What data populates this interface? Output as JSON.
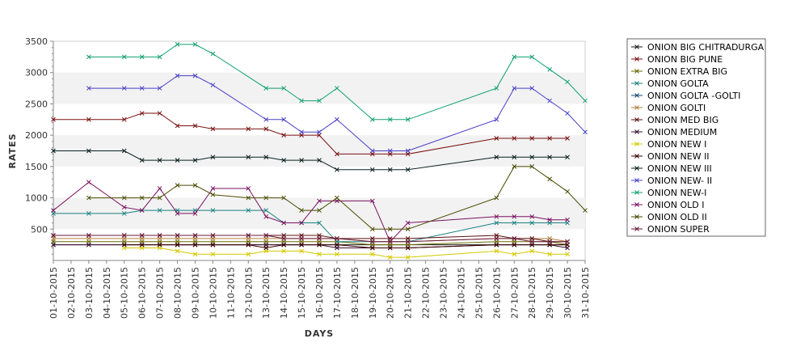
{
  "chart_data": {
    "type": "line",
    "title": "",
    "xlabel": "DAYS",
    "ylabel": "RATES",
    "ylim": [
      0,
      3500
    ],
    "yticks": [
      500,
      1000,
      1500,
      2000,
      2500,
      3000,
      3500
    ],
    "grid": "alternating horizontal bands",
    "legend_position": "right",
    "categories": [
      "01-10-2015",
      "02-10-2015",
      "03-10-2015",
      "04-10-2015",
      "05-10-2015",
      "06-10-2015",
      "07-10-2015",
      "08-10-2015",
      "09-10-2015",
      "10-10-2015",
      "11-10-2015",
      "12-10-2015",
      "13-10-2015",
      "14-10-2015",
      "15-10-2015",
      "16-10-2015",
      "17-10-2015",
      "18-10-2015",
      "19-10-2015",
      "20-10-2015",
      "21-10-2015",
      "22-10-2015",
      "23-10-2015",
      "24-10-2015",
      "25-10-2015",
      "26-10-2015",
      "27-10-2015",
      "28-10-2015",
      "29-10-2015",
      "30-10-2015",
      "31-10-2015"
    ],
    "series": [
      {
        "name": "ONION BIG CHITRADURGA",
        "color": "#1a1a1a",
        "values": [
          250,
          null,
          250,
          null,
          250,
          250,
          250,
          250,
          250,
          250,
          null,
          250,
          250,
          250,
          250,
          250,
          250,
          null,
          250,
          250,
          250,
          null,
          null,
          null,
          null,
          250,
          250,
          250,
          250,
          250,
          null
        ]
      },
      {
        "name": "ONION BIG PUNE",
        "color": "#7a1010",
        "values": [
          2250,
          null,
          2250,
          null,
          2250,
          2350,
          2350,
          2150,
          2150,
          2100,
          null,
          2100,
          2100,
          2000,
          2000,
          2000,
          1700,
          null,
          1700,
          1700,
          1700,
          null,
          null,
          null,
          null,
          1950,
          1950,
          1950,
          1950,
          1950,
          null
        ]
      },
      {
        "name": "ONION EXTRA BIG",
        "color": "#6b6b00",
        "values": [
          300,
          null,
          300,
          null,
          300,
          300,
          300,
          300,
          300,
          300,
          null,
          300,
          300,
          300,
          300,
          300,
          300,
          null,
          250,
          250,
          250,
          null,
          null,
          null,
          null,
          300,
          300,
          300,
          300,
          250,
          null
        ]
      },
      {
        "name": "ONION GOLTA",
        "color": "#1a8080",
        "values": [
          750,
          null,
          750,
          null,
          750,
          800,
          800,
          800,
          800,
          800,
          null,
          800,
          800,
          600,
          600,
          600,
          300,
          null,
          300,
          300,
          300,
          null,
          null,
          null,
          null,
          600,
          600,
          600,
          600,
          600,
          null
        ]
      },
      {
        "name": "ONION GOLTA -GOLTI",
        "color": "#104a70",
        "values": [
          null,
          null,
          null,
          null,
          null,
          null,
          null,
          null,
          null,
          null,
          null,
          null,
          null,
          null,
          null,
          null,
          null,
          null,
          null,
          null,
          null,
          null,
          null,
          null,
          null,
          null,
          null,
          null,
          null,
          null,
          null
        ]
      },
      {
        "name": "ONION GOLTI",
        "color": "#b08040",
        "values": [
          350,
          null,
          350,
          null,
          350,
          350,
          350,
          350,
          350,
          350,
          null,
          350,
          350,
          350,
          350,
          350,
          350,
          null,
          300,
          300,
          300,
          null,
          null,
          null,
          null,
          350,
          350,
          350,
          350,
          300,
          null
        ]
      },
      {
        "name": "ONION MED BIG",
        "color": "#5a1010",
        "values": [
          400,
          null,
          400,
          null,
          400,
          400,
          400,
          400,
          400,
          400,
          null,
          400,
          400,
          400,
          400,
          400,
          350,
          null,
          350,
          350,
          350,
          null,
          null,
          null,
          null,
          400,
          350,
          350,
          300,
          300,
          null
        ]
      },
      {
        "name": "ONION MEDIUM",
        "color": "#3a1030",
        "values": [
          250,
          null,
          250,
          null,
          250,
          250,
          250,
          250,
          250,
          250,
          null,
          250,
          250,
          250,
          250,
          250,
          200,
          null,
          200,
          200,
          200,
          null,
          null,
          null,
          null,
          250,
          250,
          250,
          250,
          200,
          null
        ]
      },
      {
        "name": "ONION NEW I",
        "color": "#d4c800",
        "values": [
          null,
          null,
          null,
          null,
          200,
          200,
          200,
          150,
          100,
          100,
          null,
          100,
          150,
          150,
          150,
          100,
          100,
          null,
          100,
          50,
          50,
          null,
          null,
          null,
          null,
          150,
          100,
          150,
          100,
          100,
          null
        ]
      },
      {
        "name": "ONION NEW II",
        "color": "#3a0000",
        "values": [
          null,
          null,
          null,
          null,
          250,
          250,
          250,
          250,
          250,
          250,
          null,
          250,
          200,
          250,
          250,
          250,
          250,
          null,
          200,
          200,
          200,
          null,
          null,
          null,
          null,
          250,
          250,
          250,
          250,
          250,
          null
        ]
      },
      {
        "name": "ONION NEW III",
        "color": "#0a2020",
        "values": [
          1750,
          null,
          1750,
          null,
          1750,
          1600,
          1600,
          1600,
          1600,
          1650,
          null,
          1650,
          1650,
          1600,
          1600,
          1600,
          1450,
          null,
          1450,
          1450,
          1450,
          null,
          null,
          null,
          null,
          1650,
          1650,
          1650,
          1650,
          1650,
          null
        ]
      },
      {
        "name": "ONION NEW- II",
        "color": "#4a40c8",
        "values": [
          null,
          null,
          2750,
          null,
          2750,
          2750,
          2750,
          2950,
          2950,
          2800,
          null,
          null,
          2250,
          2250,
          2050,
          2050,
          2250,
          null,
          1750,
          1750,
          1750,
          null,
          null,
          null,
          null,
          2250,
          2750,
          2750,
          2550,
          2350,
          2050
        ]
      },
      {
        "name": "ONION NEW-I",
        "color": "#10a070",
        "values": [
          null,
          null,
          3250,
          null,
          3250,
          3250,
          3250,
          3450,
          3450,
          3300,
          null,
          null,
          2750,
          2750,
          2550,
          2550,
          2750,
          null,
          2250,
          2250,
          2250,
          null,
          null,
          null,
          null,
          2750,
          3250,
          3250,
          3050,
          2850,
          2550
        ]
      },
      {
        "name": "ONION OLD I",
        "color": "#7a1060",
        "values": [
          800,
          null,
          1250,
          null,
          850,
          800,
          1150,
          750,
          750,
          1150,
          null,
          1150,
          700,
          600,
          600,
          950,
          950,
          null,
          950,
          300,
          600,
          null,
          null,
          null,
          null,
          700,
          700,
          700,
          650,
          650,
          null
        ]
      },
      {
        "name": "ONION OLD II",
        "color": "#4a4a00",
        "values": [
          null,
          null,
          1000,
          null,
          1000,
          1000,
          1000,
          1200,
          1200,
          1050,
          null,
          1000,
          1000,
          1000,
          800,
          800,
          1000,
          null,
          500,
          500,
          500,
          null,
          null,
          null,
          null,
          1000,
          1500,
          1500,
          1300,
          1100,
          800
        ]
      },
      {
        "name": "ONION SUPER",
        "color": "#6a1a3a",
        "values": [
          400,
          null,
          400,
          null,
          400,
          400,
          400,
          400,
          400,
          400,
          null,
          400,
          400,
          350,
          350,
          350,
          350,
          null,
          300,
          300,
          300,
          null,
          null,
          null,
          null,
          350,
          350,
          300,
          300,
          300,
          null
        ]
      }
    ]
  }
}
